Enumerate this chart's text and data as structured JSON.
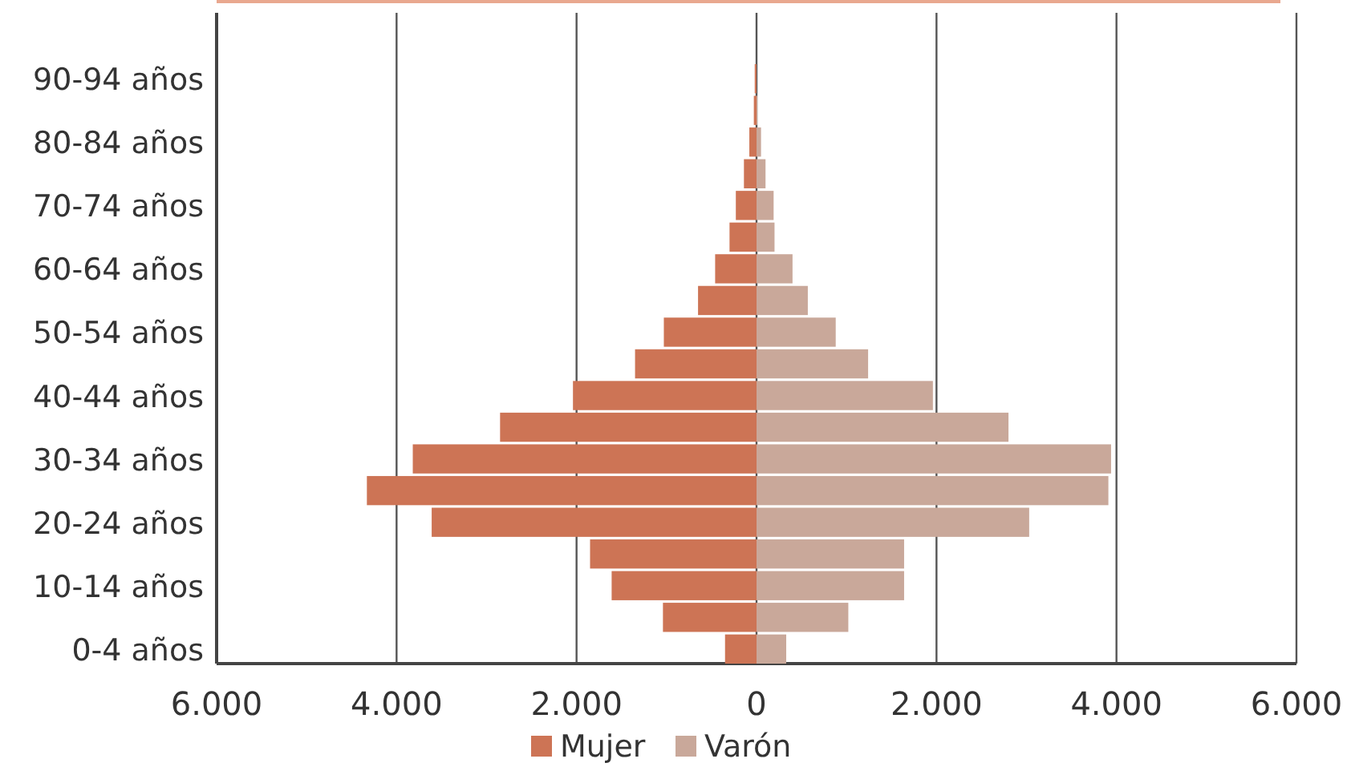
{
  "chart_data": {
    "type": "bar",
    "orientation": "horizontal",
    "stacked": true,
    "categories": [
      "90-94 años",
      null,
      "80-84 años",
      null,
      "70-74 años",
      null,
      "60-64 años",
      null,
      "50-54 años",
      null,
      "40-44 años",
      null,
      "30-34 años",
      null,
      "20-24 años",
      null,
      "10-14 años",
      null,
      "0-4 años"
    ],
    "series": [
      {
        "name": "Mujer",
        "color": "#cd7455",
        "values": [
          -20,
          -30,
          -80,
          -140,
          -230,
          -300,
          -460,
          -650,
          -1030,
          -1350,
          -2040,
          -2850,
          -3820,
          -4330,
          -3610,
          -1850,
          -1610,
          -1040,
          -350
        ]
      },
      {
        "name": "Varón",
        "color": "#c9a89a",
        "values": [
          0,
          10,
          50,
          100,
          190,
          200,
          400,
          570,
          880,
          1240,
          1960,
          2800,
          3940,
          3910,
          3030,
          1640,
          1640,
          1020,
          330
        ]
      }
    ],
    "xlim": [
      -6000,
      6000
    ],
    "xticks": [
      {
        "value": -6000,
        "label": "6.000"
      },
      {
        "value": -4000,
        "label": "4.000"
      },
      {
        "value": -2000,
        "label": "2.000"
      },
      0,
      {
        "value": 2000,
        "label": "2.000"
      },
      {
        "value": 4000,
        "label": "4.000"
      },
      {
        "value": 6000,
        "label": "6.000"
      }
    ],
    "grid": "x",
    "legend": "bottom"
  }
}
